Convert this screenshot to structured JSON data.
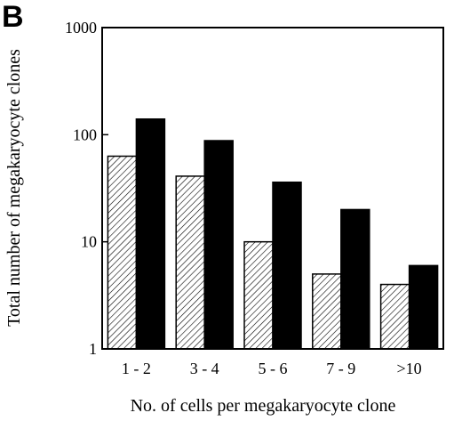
{
  "chart_data": {
    "type": "bar",
    "panel_label": "B",
    "title": "",
    "xlabel": "No. of cells per megakaryocyte clone",
    "ylabel": "Total number of megakaryocyte clones",
    "yscale": "log",
    "ylim": [
      1,
      1000
    ],
    "yticks": [
      "1",
      "10",
      "100",
      "1000"
    ],
    "categories": [
      "1 - 2",
      "3 - 4",
      "5 - 6",
      "7 - 9",
      ">10"
    ],
    "series": [
      {
        "fill": "hatched",
        "color": "#000000",
        "values": [
          63,
          41,
          10,
          5,
          4
        ]
      },
      {
        "fill": "solid",
        "color": "#000000",
        "values": [
          140,
          88,
          36,
          20,
          6
        ]
      }
    ],
    "grid": false,
    "legend": "none"
  }
}
